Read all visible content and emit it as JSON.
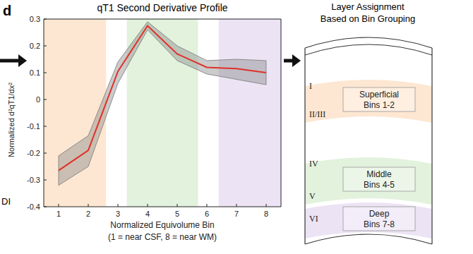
{
  "panel_label": "d",
  "fragment": "DI",
  "chart_data": {
    "type": "line",
    "title": "qT1 Second Derivative Profile",
    "x_label": [
      "Normalized Equivolume Bin",
      "(1 = near CSF, 8 = near WM)"
    ],
    "y_label": "Normalized d²qT1/dx²",
    "x": [
      1,
      2,
      3,
      4,
      5,
      6,
      7,
      8
    ],
    "series": [
      {
        "color": "#e0302a",
        "values": [
          -0.265,
          -0.19,
          0.105,
          0.275,
          0.17,
          0.12,
          0.115,
          0.1
        ],
        "lower": [
          -0.32,
          -0.25,
          0.06,
          0.26,
          0.145,
          0.095,
          0.075,
          0.055
        ],
        "upper": [
          -0.21,
          -0.135,
          0.14,
          0.29,
          0.2,
          0.145,
          0.15,
          0.145
        ]
      }
    ],
    "xlim": [
      0.5,
      8.5
    ],
    "xticks": [
      1,
      2,
      3,
      4,
      5,
      6,
      7,
      8
    ],
    "ylim": [
      -0.4,
      0.3
    ],
    "yticks": [
      -0.4,
      -0.3,
      -0.2,
      -0.1,
      0,
      0.1,
      0.2,
      0.3
    ],
    "grid": false,
    "bands": [
      {
        "from": 0.5,
        "to": 2.6,
        "color": "#fde7d2"
      },
      {
        "from": 3.3,
        "to": 5.7,
        "color": "#e2f2dc"
      },
      {
        "from": 6.4,
        "to": 8.5,
        "color": "#ece3f4"
      }
    ]
  },
  "diagram": {
    "title": [
      "Layer Assignment",
      "Based on Bin Grouping"
    ],
    "layers": [
      {
        "roman": [
          "I",
          "II/III"
        ],
        "name": "Superficial",
        "bins": "Bins 1-2",
        "color": "#fde7d2"
      },
      {
        "roman": [
          "IV",
          "V"
        ],
        "name": "Middle",
        "bins": "Bins 4-5",
        "color": "#e2f2dc"
      },
      {
        "roman": [
          "VI"
        ],
        "name": "Deep",
        "bins": "Bins 7-8",
        "color": "#ece3f4"
      }
    ]
  }
}
